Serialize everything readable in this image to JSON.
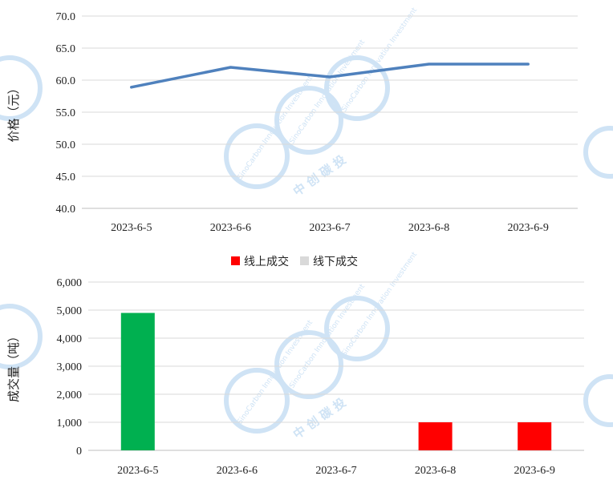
{
  "watermark": {
    "en_text": "SinoCarbon Innovation Investment",
    "cn_text": "中 创 碳 投"
  },
  "chart_data": [
    {
      "type": "line",
      "title": "",
      "ylabel": "价格（元）",
      "xlabel": "",
      "categories": [
        "2023-6-5",
        "2023-6-6",
        "2023-6-7",
        "2023-6-8",
        "2023-6-9"
      ],
      "series": [
        {
          "values": [
            58.9,
            62.0,
            60.5,
            62.5,
            62.5
          ],
          "color": "#4f81bd"
        }
      ],
      "ylim": [
        40.0,
        70.0
      ],
      "yticks": [
        "40.0",
        "45.0",
        "50.0",
        "55.0",
        "60.0",
        "65.0",
        "70.0"
      ],
      "grid": true,
      "legend": "none"
    },
    {
      "type": "bar",
      "title": "",
      "ylabel": "成交量（吨）",
      "xlabel": "",
      "categories": [
        "2023-6-5",
        "2023-6-6",
        "2023-6-7",
        "2023-6-8",
        "2023-6-9"
      ],
      "series": [
        {
          "name": "线上成交",
          "values": [
            0,
            0,
            0,
            1000,
            1000
          ],
          "color": "#ff0000"
        },
        {
          "name": "线下成交",
          "values": [
            4900,
            0,
            0,
            0,
            0
          ],
          "color": "#d9d9d9"
        }
      ],
      "bar_color_overrides": [
        {
          "category": "2023-6-5",
          "color": "#00b050"
        }
      ],
      "ylim": [
        0,
        6000
      ],
      "yticks": [
        "0",
        "1,000",
        "2,000",
        "3,000",
        "4,000",
        "5,000",
        "6,000"
      ],
      "grid": true,
      "legend": "top"
    }
  ]
}
